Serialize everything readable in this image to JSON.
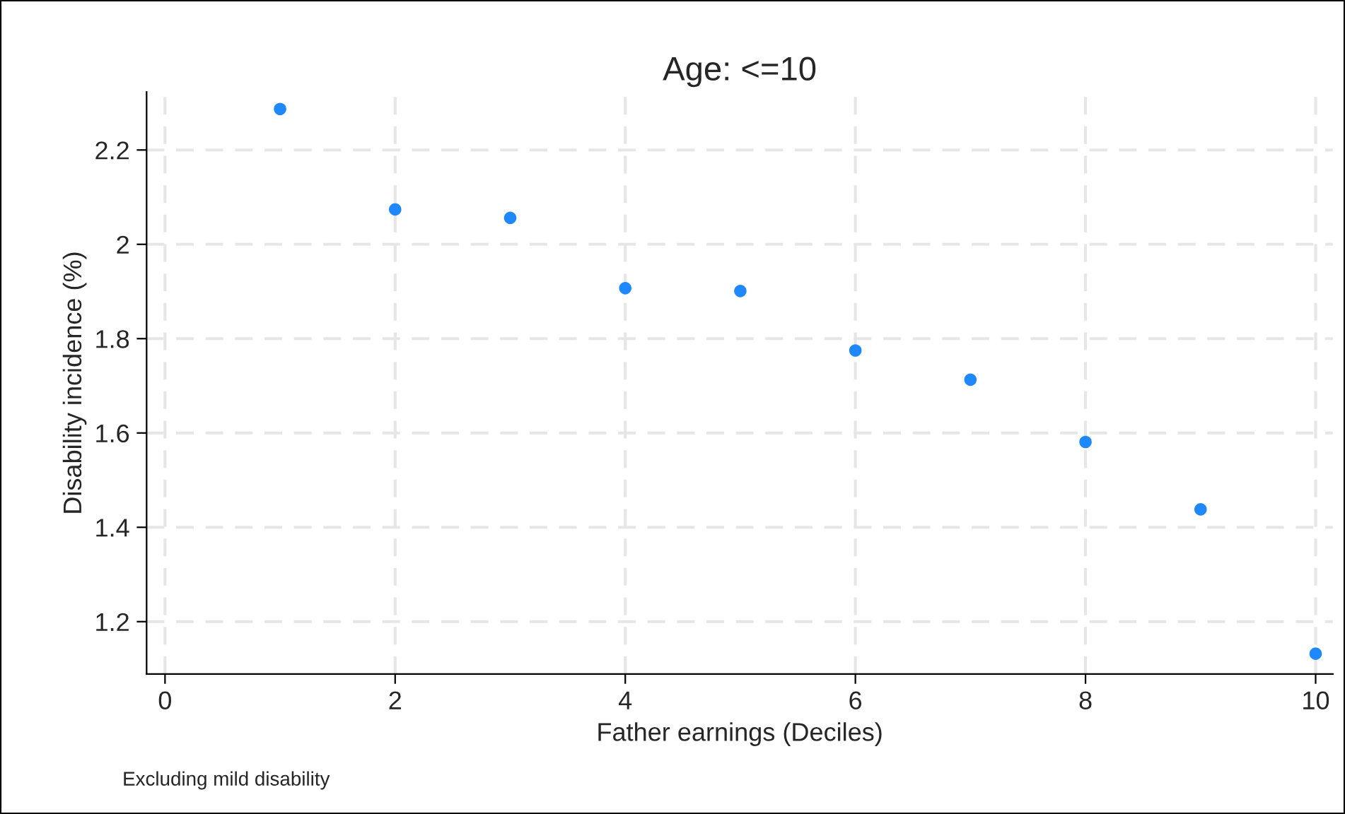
{
  "chart_data": {
    "type": "scatter",
    "title": "Age: <=10",
    "xlabel": "Father earnings (Deciles)",
    "ylabel": "Disability incidence (%)",
    "x": [
      1,
      2,
      3,
      4,
      5,
      6,
      7,
      8,
      9,
      10
    ],
    "series": [
      {
        "color": "#1f88ff",
        "values": [
          2.287,
          2.074,
          2.056,
          1.907,
          1.901,
          1.775,
          1.713,
          1.581,
          1.438,
          1.132
        ]
      }
    ],
    "xlim": [
      -0.16,
      10.15
    ],
    "xticks": [
      0,
      2,
      4,
      6,
      8,
      10
    ],
    "ylim": [
      1.089,
      2.323
    ],
    "yticks": [
      1.2,
      1.4,
      1.6,
      1.8,
      {
        "value": 2,
        "label": "2"
      },
      2.2
    ],
    "grid": true,
    "marker": "circle",
    "annotations": [
      "Excluding mild disability"
    ]
  }
}
